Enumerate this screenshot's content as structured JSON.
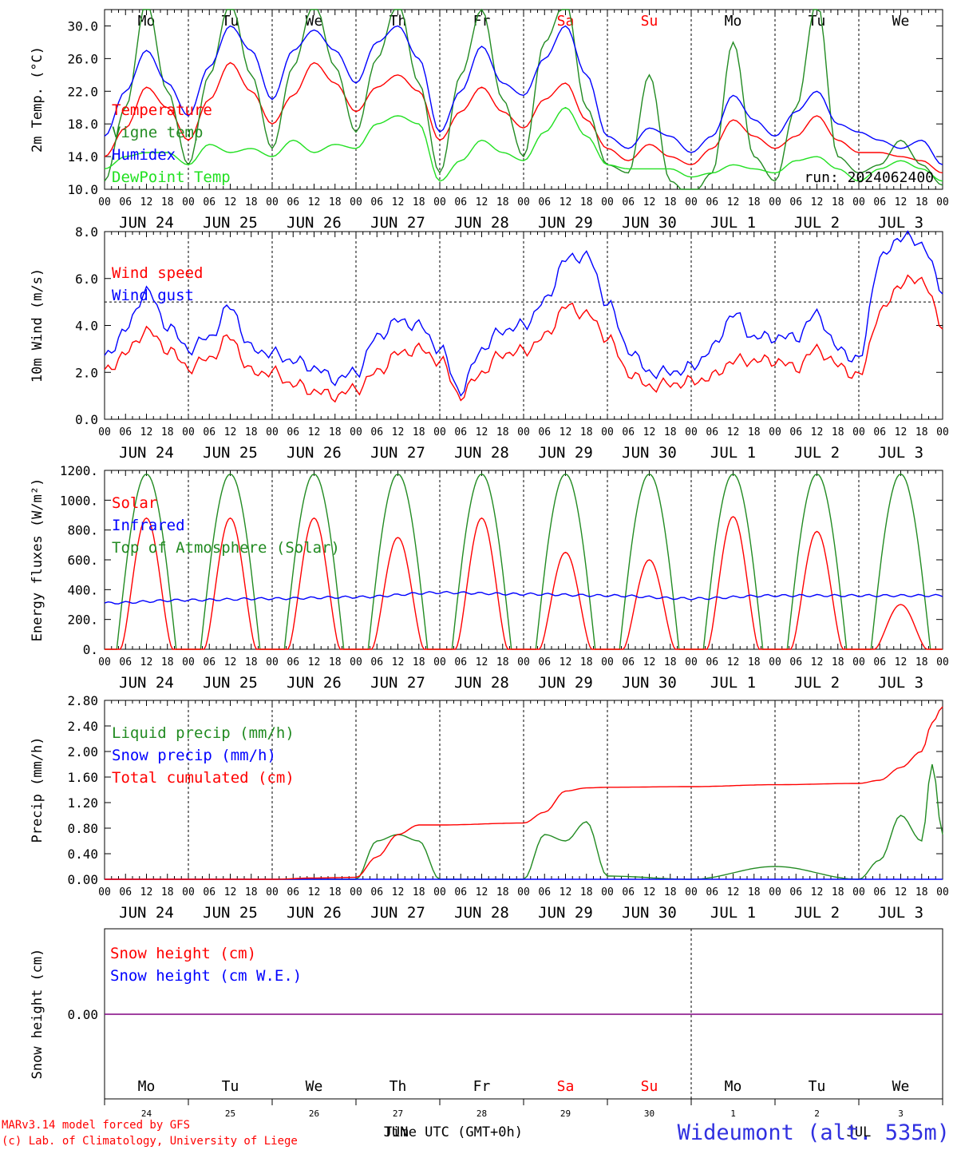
{
  "colors": {
    "red": "#ff0000",
    "green": "#228b22",
    "blue": "#0000ff",
    "lightgreen": "#22e022",
    "purple": "#800080",
    "title_blue": "#3030e0"
  },
  "days": [
    "JUN 24",
    "JUN 25",
    "JUN 26",
    "JUN 27",
    "JUN 28",
    "JUN 29",
    "JUN 30",
    "JUL  1",
    "JUL  2",
    "JUL  3"
  ],
  "day_abbr": [
    "Mo",
    "Tu",
    "We",
    "Th",
    "Fr",
    "Sa",
    "Su",
    "Mo",
    "Tu",
    "We"
  ],
  "weekend_index": [
    5,
    6
  ],
  "hour_ticks": [
    "00",
    "06",
    "12",
    "18"
  ],
  "bottom_day_numbers": [
    "24",
    "25",
    "26",
    "27",
    "28",
    "29",
    "30",
    "1",
    "2",
    "3"
  ],
  "footer": {
    "credit_line1": "MARv3.14 model forced by GFS",
    "credit_line2": "(c) Lab. of Climatology, University of Liege",
    "xlabel": "Time UTC (GMT+0h)",
    "month_label_left": "JUN",
    "month_label_right": "JUL",
    "station": "Wideumont (alt. 535m)"
  },
  "chart_data": [
    {
      "type": "line",
      "ylabel": "2m Temp. (°C)",
      "ylim": [
        10,
        32
      ],
      "yticks": [
        "10.0",
        "14.0",
        "18.0",
        "22.0",
        "26.0",
        "30.0"
      ],
      "annotation": "run: 2024062400",
      "x_unit": "hours since 2024-06-24 00 UTC",
      "x": [
        0,
        6,
        12,
        18,
        24,
        30,
        36,
        42,
        48,
        54,
        60,
        66,
        72,
        78,
        84,
        90,
        96,
        102,
        108,
        114,
        120,
        126,
        132,
        138,
        144,
        150,
        156,
        162,
        168,
        174,
        180,
        186,
        192,
        198,
        204,
        210,
        216,
        222,
        228,
        234,
        240
      ],
      "series": [
        {
          "name": "Temperature",
          "color": "red",
          "values": [
            14.0,
            17.5,
            22.5,
            20.0,
            16.0,
            21.0,
            25.5,
            22.0,
            18.0,
            21.5,
            25.5,
            23.0,
            19.5,
            22.5,
            24.0,
            22.0,
            16.0,
            19.5,
            22.5,
            19.5,
            17.5,
            21.0,
            23.0,
            18.5,
            15.0,
            13.5,
            15.5,
            14.0,
            13.0,
            15.0,
            18.5,
            16.5,
            15.0,
            16.5,
            19.0,
            16.0,
            14.5,
            14.5,
            14.0,
            13.5,
            12.0
          ]
        },
        {
          "name": "Vigne temp",
          "color": "green",
          "values": [
            11.0,
            20.0,
            33.0,
            22.0,
            13.0,
            24.0,
            33.0,
            24.0,
            15.0,
            25.0,
            33.0,
            25.0,
            17.0,
            26.0,
            33.0,
            23.0,
            12.0,
            24.0,
            32.0,
            21.0,
            14.0,
            28.0,
            33.0,
            20.0,
            13.0,
            12.0,
            24.0,
            11.0,
            9.0,
            12.0,
            28.0,
            14.0,
            11.0,
            20.0,
            33.0,
            14.0,
            12.0,
            13.0,
            16.0,
            13.0,
            10.5
          ]
        },
        {
          "name": "Humidex",
          "color": "blue",
          "values": [
            16.5,
            22.0,
            27.0,
            23.0,
            19.0,
            25.0,
            30.0,
            27.0,
            21.0,
            27.0,
            29.5,
            27.0,
            23.0,
            28.0,
            30.0,
            26.0,
            17.0,
            22.0,
            27.5,
            23.0,
            21.5,
            26.0,
            30.0,
            24.0,
            16.5,
            15.0,
            17.5,
            16.5,
            14.5,
            16.5,
            21.5,
            18.5,
            16.5,
            19.5,
            22.0,
            18.0,
            17.0,
            16.0,
            15.0,
            16.0,
            13.0
          ]
        },
        {
          "name": "DewPoint Temp",
          "color": "lightgreen",
          "values": [
            12.5,
            14.0,
            14.5,
            14.5,
            13.0,
            15.5,
            14.5,
            15.0,
            14.0,
            16.0,
            14.5,
            15.5,
            15.0,
            18.0,
            19.0,
            18.0,
            11.0,
            13.5,
            16.0,
            14.5,
            13.5,
            17.0,
            20.0,
            16.5,
            13.0,
            12.5,
            12.5,
            12.5,
            11.5,
            12.0,
            13.0,
            12.5,
            12.0,
            13.5,
            14.0,
            12.5,
            11.0,
            12.5,
            13.5,
            12.5,
            11.0
          ]
        }
      ]
    },
    {
      "type": "line",
      "ylabel": "10m Wind (m/s)",
      "ylim": [
        0,
        8
      ],
      "yticks": [
        "0.0",
        "2.0",
        "4.0",
        "6.0",
        "8.0"
      ],
      "reference_line": 5.0,
      "x": [
        0,
        6,
        12,
        18,
        24,
        30,
        36,
        42,
        48,
        54,
        60,
        66,
        72,
        78,
        84,
        90,
        96,
        102,
        108,
        114,
        120,
        126,
        132,
        138,
        144,
        150,
        156,
        162,
        168,
        174,
        180,
        186,
        192,
        198,
        204,
        210,
        216,
        222,
        228,
        234,
        240
      ],
      "series": [
        {
          "name": "Wind speed",
          "color": "red",
          "values": [
            2.0,
            2.8,
            3.8,
            3.0,
            2.2,
            2.6,
            3.5,
            2.0,
            2.0,
            1.5,
            1.2,
            1.0,
            1.3,
            2.0,
            2.8,
            3.0,
            2.5,
            1.0,
            2.0,
            2.8,
            2.9,
            3.5,
            4.8,
            4.5,
            3.5,
            2.0,
            1.4,
            1.5,
            1.6,
            1.8,
            2.5,
            2.5,
            2.5,
            2.2,
            3.0,
            2.3,
            1.8,
            4.5,
            5.8,
            6.0,
            4.0
          ]
        },
        {
          "name": "Wind gust",
          "color": "blue",
          "values": [
            2.6,
            3.8,
            5.5,
            4.0,
            3.0,
            3.5,
            4.8,
            3.0,
            2.8,
            2.5,
            2.2,
            1.7,
            2.0,
            3.5,
            4.2,
            4.0,
            3.0,
            1.2,
            3.0,
            3.8,
            4.0,
            5.0,
            6.8,
            7.0,
            5.0,
            3.0,
            2.0,
            2.0,
            2.2,
            3.0,
            4.5,
            3.5,
            3.5,
            3.5,
            4.5,
            3.0,
            2.5,
            6.8,
            7.8,
            7.5,
            5.5
          ]
        }
      ]
    },
    {
      "type": "line",
      "ylabel": "Energy fluxes (W/m²)",
      "ylim": [
        0,
        1200
      ],
      "yticks": [
        "0.",
        "200.",
        "400.",
        "600.",
        "800.",
        "1000.",
        "1200."
      ],
      "x_unit": "hours since 2024-06-24 00 UTC",
      "series": [
        {
          "name": "Solar",
          "color": "red",
          "daily_peak": [
            880,
            880,
            880,
            750,
            880,
            650,
            600,
            890,
            790,
            300
          ]
        },
        {
          "name": "Infrared",
          "color": "blue",
          "values": [
            310,
            330,
            340,
            350,
            380,
            370,
            360,
            340,
            360,
            360
          ],
          "x": [
            0,
            24,
            48,
            72,
            96,
            120,
            144,
            168,
            192,
            240
          ]
        },
        {
          "name": "Top of Atmosphere (Solar)",
          "color": "green",
          "daily_peak": [
            1175,
            1175,
            1175,
            1175,
            1175,
            1175,
            1175,
            1175,
            1175,
            1175
          ]
        }
      ]
    },
    {
      "type": "line",
      "ylabel": "Precip (mm/h)",
      "ylim": [
        0,
        2.8
      ],
      "yticks": [
        "0.00",
        "0.40",
        "0.80",
        "1.20",
        "1.60",
        "2.00",
        "2.40",
        "2.80"
      ],
      "x": [
        0,
        48,
        60,
        72,
        78,
        84,
        90,
        96,
        120,
        126,
        132,
        138,
        144,
        168,
        192,
        216,
        222,
        228,
        234,
        237,
        240
      ],
      "series": [
        {
          "name": "Liquid precip (mm/h)",
          "color": "green",
          "values": [
            0,
            0,
            0,
            0,
            0.6,
            0.7,
            0.6,
            0,
            0,
            0.7,
            0.6,
            0.9,
            0.05,
            0,
            0.2,
            0,
            0.3,
            1.0,
            0.6,
            1.8,
            0.7
          ]
        },
        {
          "name": "Snow precip (mm/h)",
          "color": "blue",
          "values": [
            0,
            0,
            0,
            0,
            0,
            0,
            0,
            0,
            0,
            0,
            0,
            0,
            0,
            0,
            0,
            0,
            0,
            0,
            0,
            0,
            0
          ]
        },
        {
          "name": "Total cumulated (cm)",
          "color": "red",
          "values": [
            0,
            0,
            0.02,
            0.03,
            0.35,
            0.7,
            0.85,
            0.85,
            0.88,
            1.05,
            1.38,
            1.43,
            1.44,
            1.45,
            1.48,
            1.5,
            1.55,
            1.75,
            2.0,
            2.45,
            2.7
          ]
        }
      ]
    },
    {
      "type": "line",
      "ylabel": "Snow height (cm)",
      "ytick": "0.00",
      "series": [
        {
          "name": "Snow height (cm)",
          "color": "red",
          "values": [
            0,
            0
          ]
        },
        {
          "name": "Snow height (cm W.E.)",
          "color": "blue",
          "values": [
            0,
            0
          ]
        }
      ]
    }
  ]
}
